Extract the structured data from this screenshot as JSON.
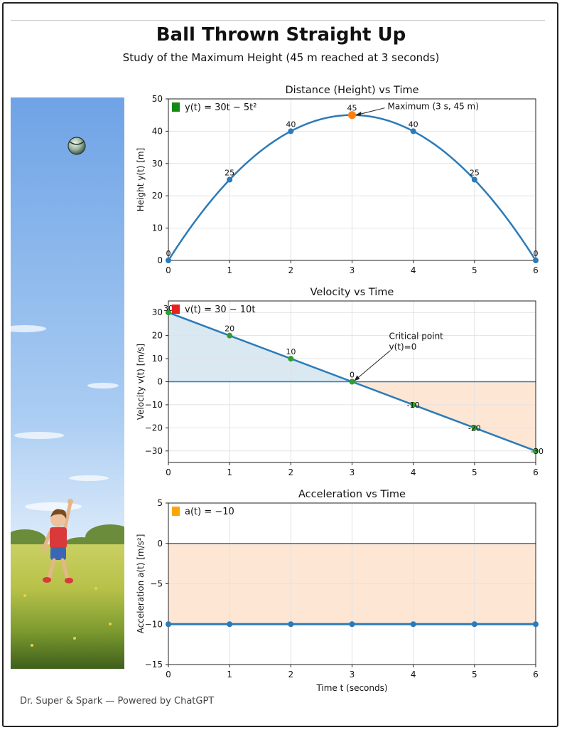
{
  "header": {
    "title": "Ball Thrown Straight Up",
    "subtitle": "Study of the Maximum Height (45 m reached at 3 seconds)"
  },
  "footer": {
    "text": "Dr. Super & Spark — Powered by ChatGPT"
  },
  "colors": {
    "line": "#2b7bb9",
    "max_point": "#ff7f0e",
    "velocity_points": "#2ca02c",
    "positive_fill": "#d6e6f0",
    "negative_fill": "#fde3cf",
    "legend_height": "#138a13",
    "legend_velocity": "#e8201e",
    "legend_acceleration": "#ffa500"
  },
  "scene": {
    "description_icons": [
      "sky",
      "ball-icon",
      "boy-icon",
      "meadow"
    ]
  },
  "chart_data": [
    {
      "id": "height",
      "type": "line",
      "title": "Distance (Height) vs Time",
      "xlabel": "",
      "ylabel": "Height y(t) [m]",
      "xlim": [
        0,
        6
      ],
      "ylim": [
        0,
        50
      ],
      "xticks": [
        0,
        1,
        2,
        3,
        4,
        5,
        6
      ],
      "yticks": [
        0,
        10,
        20,
        30,
        40,
        50
      ],
      "grid": true,
      "legend": {
        "label": "y(t) = 30t − 5t²",
        "placement": "top-left"
      },
      "curve": "30t-5t^2",
      "x": [
        0,
        1,
        2,
        3,
        4,
        5,
        6
      ],
      "y": [
        0,
        25,
        40,
        45,
        40,
        25,
        0
      ],
      "data_labels": [
        "0",
        "25",
        "40",
        "45",
        "40",
        "25",
        "0"
      ],
      "highlight_index": 3,
      "annotation": {
        "text": "Maximum (3 s, 45 m)",
        "x": 3,
        "y": 45
      }
    },
    {
      "id": "velocity",
      "type": "line",
      "title": "Velocity vs Time",
      "xlabel": "",
      "ylabel": "Velocity v(t) [m/s]",
      "xlim": [
        0,
        6
      ],
      "ylim": [
        -35,
        35
      ],
      "xticks": [
        0,
        1,
        2,
        3,
        4,
        5,
        6
      ],
      "yticks": [
        -30,
        -20,
        -10,
        0,
        10,
        20,
        30
      ],
      "grid": true,
      "legend": {
        "label": "v(t) = 30 − 10t",
        "placement": "top-left"
      },
      "x": [
        0,
        1,
        2,
        3,
        4,
        5,
        6
      ],
      "y": [
        30,
        20,
        10,
        0,
        -10,
        -20,
        -30
      ],
      "data_labels": [
        "30",
        "20",
        "10",
        "0",
        "-10",
        "-20",
        "-30"
      ],
      "zero_line": true,
      "annotation": {
        "lines": [
          "Critical point",
          "v(t)=0"
        ],
        "x": 3,
        "y": 0
      }
    },
    {
      "id": "acceleration",
      "type": "line",
      "title": "Acceleration vs Time",
      "xlabel": "Time t (seconds)",
      "ylabel": "Acceleration a(t) [m/s²]",
      "xlim": [
        0,
        6
      ],
      "ylim": [
        -15,
        5
      ],
      "xticks": [
        0,
        1,
        2,
        3,
        4,
        5,
        6
      ],
      "yticks": [
        -15,
        -10,
        -5,
        0,
        5
      ],
      "grid": true,
      "legend": {
        "label": "a(t) = −10",
        "placement": "top-left"
      },
      "x": [
        0,
        1,
        2,
        3,
        4,
        5,
        6
      ],
      "y": [
        -10,
        -10,
        -10,
        -10,
        -10,
        -10,
        -10
      ],
      "zero_line": true
    }
  ]
}
